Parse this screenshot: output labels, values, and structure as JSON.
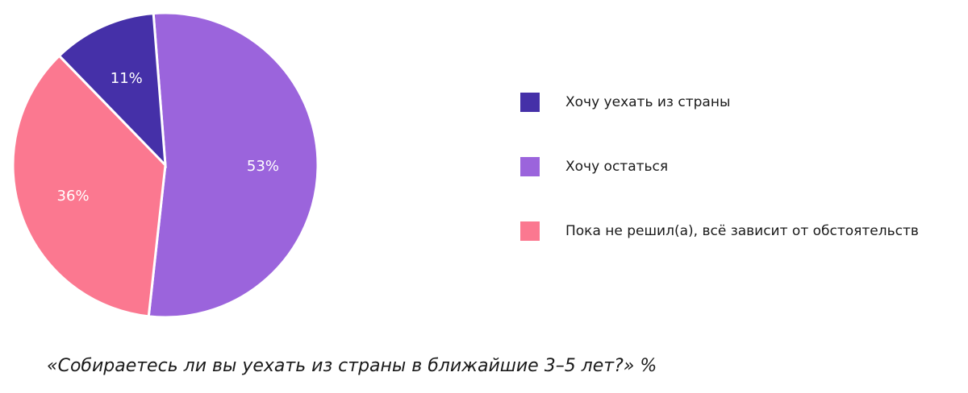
{
  "chart_data": {
    "type": "pie",
    "title": "«Собираетесь ли вы уехать из страны в ближайшие 3–5 лет?» %",
    "legend_position": "right",
    "slices": [
      {
        "label": "Хочу уехать из страны",
        "value": 11,
        "display": "11%",
        "color": "#4530a8"
      },
      {
        "label": "Хочу остаться",
        "value": 53,
        "display": "53%",
        "color": "#9b64dc"
      },
      {
        "label": "Пока не решил(а), всё зависит от обстоятельств",
        "value": 36,
        "display": "36%",
        "color": "#fb7890"
      }
    ]
  }
}
